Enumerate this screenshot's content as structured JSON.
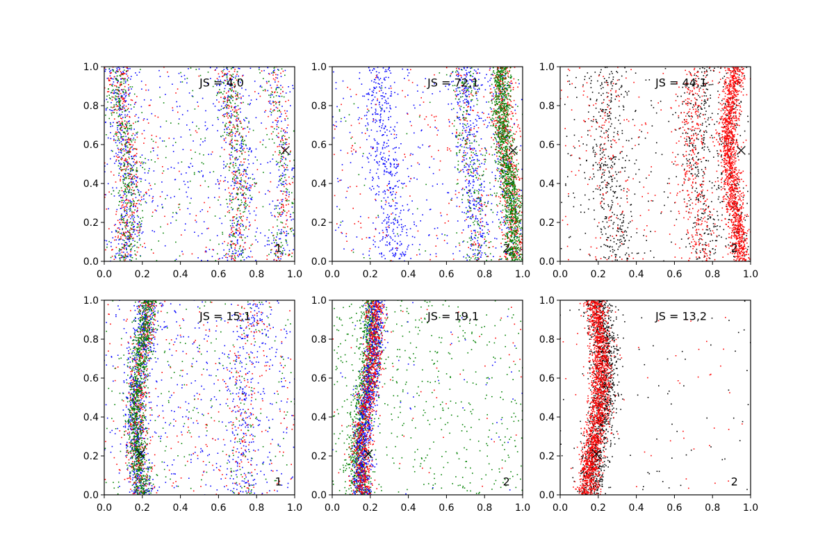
{
  "chart_data": [
    {
      "type": "scatter",
      "panel": "row1-col1",
      "annotation": "JS = 4,0",
      "corner_label": "1",
      "xlim": [
        0,
        1
      ],
      "ylim": [
        0,
        1
      ],
      "xticks": [
        "0.0",
        "0.2",
        "0.4",
        "0.6",
        "0.8",
        "1.0"
      ],
      "yticks": [
        "0.0",
        "0.2",
        "0.4",
        "0.6",
        "0.8",
        "1.0"
      ],
      "marker": [
        0.95,
        0.57
      ],
      "series": [
        {
          "color": "#0000ff",
          "count": 1100,
          "bands": [
            {
              "x": 0.1,
              "sd": 0.04,
              "w": 0.35
            },
            {
              "x": 0.68,
              "sd": 0.04,
              "w": 0.2
            },
            {
              "x": 0.92,
              "sd": 0.03,
              "w": 0.1
            }
          ],
          "uniform": 0.35
        },
        {
          "color": "#ff0000",
          "count": 800,
          "bands": [
            {
              "x": 0.1,
              "sd": 0.035,
              "w": 0.4
            },
            {
              "x": 0.68,
              "sd": 0.035,
              "w": 0.25
            },
            {
              "x": 0.92,
              "sd": 0.03,
              "w": 0.15
            }
          ],
          "uniform": 0.2
        },
        {
          "color": "#008000",
          "count": 900,
          "bands": [
            {
              "x": 0.1,
              "sd": 0.035,
              "w": 0.45
            },
            {
              "x": 0.68,
              "sd": 0.035,
              "w": 0.25
            },
            {
              "x": 0.92,
              "sd": 0.03,
              "w": 0.15
            }
          ],
          "uniform": 0.15
        }
      ]
    },
    {
      "type": "scatter",
      "panel": "row1-col2",
      "annotation": "JS = 72,1",
      "corner_label": "2",
      "xlim": [
        0,
        1
      ],
      "ylim": [
        0,
        1
      ],
      "xticks": [
        "0.0",
        "0.2",
        "0.4",
        "0.6",
        "0.8",
        "1.0"
      ],
      "yticks": [
        "0.0",
        "0.2",
        "0.4",
        "0.6",
        "0.8",
        "1.0"
      ],
      "marker": [
        0.95,
        0.57
      ],
      "series": [
        {
          "color": "#0000ff",
          "count": 1200,
          "bands": [
            {
              "x": 0.28,
              "sd": 0.05,
              "w": 0.35
            },
            {
              "x": 0.73,
              "sd": 0.04,
              "w": 0.3
            },
            {
              "x": 0.9,
              "sd": 0.03,
              "w": 0.1
            }
          ],
          "uniform": 0.25
        },
        {
          "color": "#ff0000",
          "count": 900,
          "bands": [
            {
              "x": 0.92,
              "sd": 0.03,
              "w": 0.7
            },
            {
              "x": 0.73,
              "sd": 0.04,
              "w": 0.1
            }
          ],
          "uniform": 0.2
        },
        {
          "color": "#008000",
          "count": 1500,
          "bands": [
            {
              "x": 0.92,
              "sd": 0.025,
              "w": 0.8
            },
            {
              "x": 0.73,
              "sd": 0.04,
              "w": 0.15
            }
          ],
          "uniform": 0.05
        }
      ]
    },
    {
      "type": "scatter",
      "panel": "row1-col3",
      "annotation": "JS = 44,1",
      "corner_label": "2",
      "xlim": [
        0,
        1
      ],
      "ylim": [
        0,
        1
      ],
      "xticks": [
        "0.0",
        "0.2",
        "0.4",
        "0.6",
        "0.8",
        "1.0"
      ],
      "yticks": [
        "0.0",
        "0.2",
        "0.4",
        "0.6",
        "0.8",
        "1.0"
      ],
      "marker": [
        0.95,
        0.57
      ],
      "series": [
        {
          "color": "#000000",
          "count": 1100,
          "bands": [
            {
              "x": 0.27,
              "sd": 0.06,
              "w": 0.35
            },
            {
              "x": 0.75,
              "sd": 0.05,
              "w": 0.3
            },
            {
              "x": 0.92,
              "sd": 0.03,
              "w": 0.15
            }
          ],
          "uniform": 0.2
        },
        {
          "color": "#ff0000",
          "count": 2000,
          "bands": [
            {
              "x": 0.92,
              "sd": 0.025,
              "w": 0.7
            },
            {
              "x": 0.72,
              "sd": 0.04,
              "w": 0.15
            },
            {
              "x": 0.27,
              "sd": 0.05,
              "w": 0.05
            }
          ],
          "uniform": 0.1
        }
      ]
    },
    {
      "type": "scatter",
      "panel": "row2-col1",
      "annotation": "JS = 15,1",
      "corner_label": "1",
      "xlim": [
        0,
        1
      ],
      "ylim": [
        0,
        1
      ],
      "xticks": [
        "0.0",
        "0.2",
        "0.4",
        "0.6",
        "0.8",
        "1.0"
      ],
      "yticks": [
        "0.0",
        "0.2",
        "0.4",
        "0.6",
        "0.8",
        "1.0"
      ],
      "marker": [
        0.19,
        0.21
      ],
      "series": [
        {
          "color": "#0000ff",
          "count": 1300,
          "bands": [
            {
              "x": 0.2,
              "sd": 0.03,
              "w": 0.5
            },
            {
              "x": 0.75,
              "sd": 0.05,
              "w": 0.15
            }
          ],
          "uniform": 0.35
        },
        {
          "color": "#ff0000",
          "count": 800,
          "bands": [
            {
              "x": 0.2,
              "sd": 0.028,
              "w": 0.6
            },
            {
              "x": 0.75,
              "sd": 0.05,
              "w": 0.15
            }
          ],
          "uniform": 0.25
        },
        {
          "color": "#008000",
          "count": 1200,
          "bands": [
            {
              "x": 0.2,
              "sd": 0.025,
              "w": 0.8
            },
            {
              "x": 0.75,
              "sd": 0.05,
              "w": 0.05
            }
          ],
          "uniform": 0.15
        }
      ]
    },
    {
      "type": "scatter",
      "panel": "row2-col2",
      "annotation": "JS = 19,1",
      "corner_label": "2",
      "xlim": [
        0,
        1
      ],
      "ylim": [
        0,
        1
      ],
      "xticks": [
        "0.0",
        "0.2",
        "0.4",
        "0.6",
        "0.8",
        "1.0"
      ],
      "yticks": [
        "0.0",
        "0.2",
        "0.4",
        "0.6",
        "0.8",
        "1.0"
      ],
      "marker": [
        0.19,
        0.21
      ],
      "series": [
        {
          "color": "#008000",
          "count": 1500,
          "bands": [
            {
              "x": 0.17,
              "sd": 0.03,
              "w": 0.7
            }
          ],
          "uniform": 0.3
        },
        {
          "color": "#0000ff",
          "count": 1000,
          "bands": [
            {
              "x": 0.19,
              "sd": 0.025,
              "w": 0.95
            }
          ],
          "uniform": 0.05
        },
        {
          "color": "#ff0000",
          "count": 900,
          "bands": [
            {
              "x": 0.19,
              "sd": 0.025,
              "w": 0.95
            }
          ],
          "uniform": 0.05
        }
      ]
    },
    {
      "type": "scatter",
      "panel": "row2-col3",
      "annotation": "JS = 13,2",
      "corner_label": "2",
      "xlim": [
        0,
        1
      ],
      "ylim": [
        0,
        1
      ],
      "xticks": [
        "0.0",
        "0.2",
        "0.4",
        "0.6",
        "0.8",
        "1.0"
      ],
      "yticks": [
        "0.0",
        "0.2",
        "0.4",
        "0.6",
        "0.8",
        "1.0"
      ],
      "marker": [
        0.19,
        0.21
      ],
      "series": [
        {
          "color": "#000000",
          "count": 1300,
          "bands": [
            {
              "x": 0.2,
              "sd": 0.035,
              "w": 0.95
            }
          ],
          "uniform": 0.05
        },
        {
          "color": "#ff0000",
          "count": 1800,
          "bands": [
            {
              "x": 0.18,
              "sd": 0.028,
              "w": 0.97
            }
          ],
          "uniform": 0.03
        }
      ]
    }
  ]
}
